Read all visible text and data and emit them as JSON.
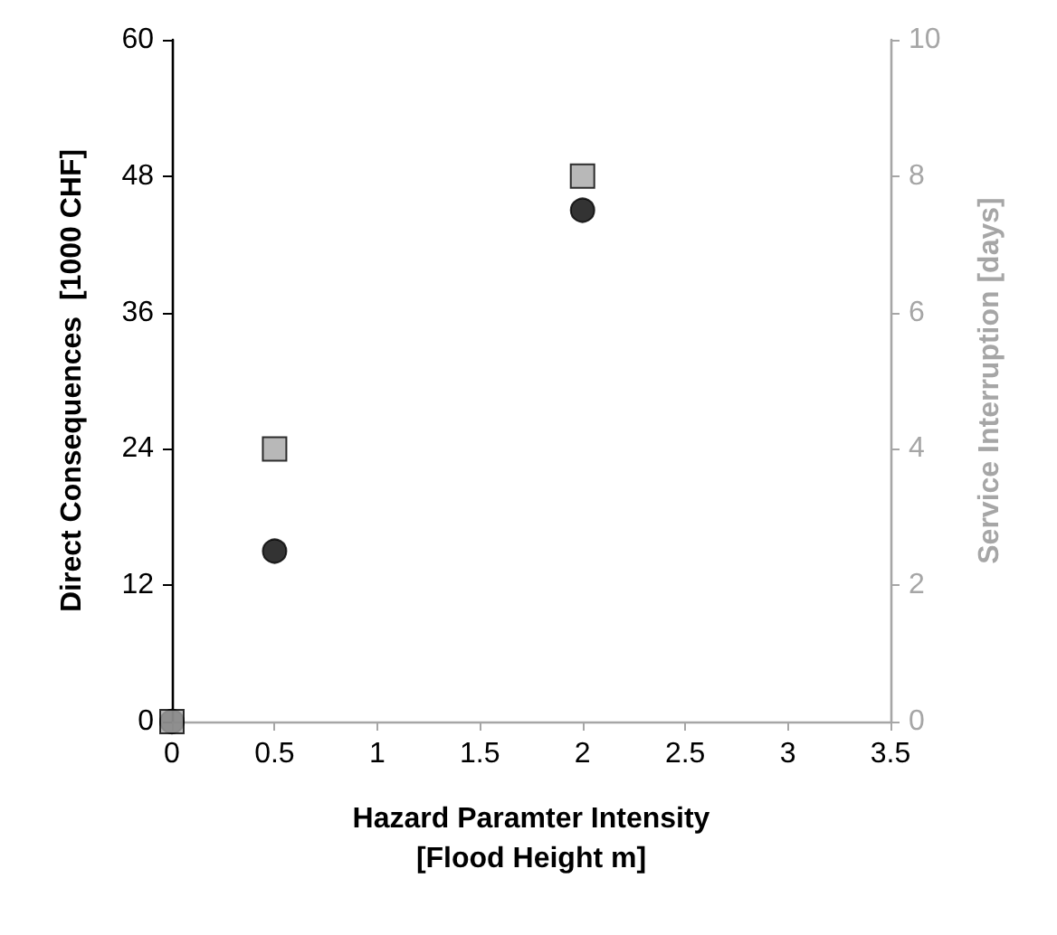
{
  "chart_data": {
    "type": "scatter",
    "xlabel": "Hazard Paramter Intensity\n[Flood Height m]",
    "ylabel": "Direct Consequences  [1000 CHF]",
    "y2label": "Service Interruption [days]",
    "x": [
      0,
      0.5,
      2
    ],
    "series": [
      {
        "color": "#000000",
        "marker": "circle",
        "values": [
          0,
          15,
          45
        ]
      },
      {
        "color": "#a6a6a6",
        "marker": "square",
        "axis": "y2",
        "values": [
          0,
          4,
          8
        ]
      }
    ],
    "xlim": [
      0,
      3.5
    ],
    "xticks": [
      0,
      0.5,
      1,
      1.5,
      2,
      2.5,
      3,
      3.5
    ],
    "ylim": [
      0,
      60
    ],
    "yticks": [
      0,
      12,
      24,
      36,
      48,
      60
    ],
    "y2lim": [
      0,
      10
    ],
    "y2ticks": [
      0,
      2,
      4,
      6,
      8,
      10
    ],
    "grid": false
  }
}
